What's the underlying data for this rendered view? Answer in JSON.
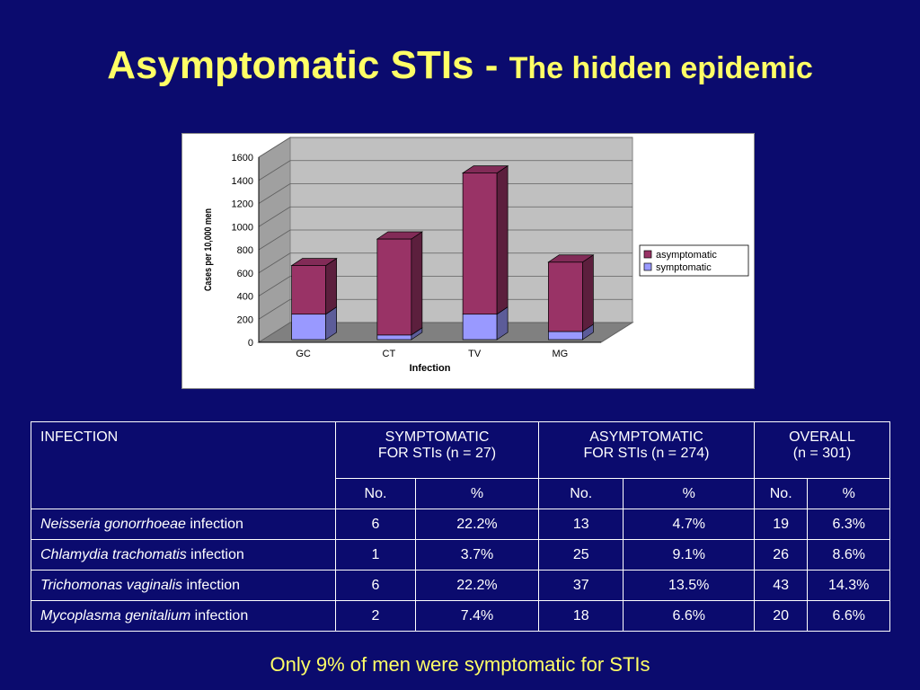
{
  "slide": {
    "title_main": "Asymptomatic STIs - ",
    "title_sub": "The hidden epidemic",
    "footnote": "Only 9% of men were symptomatic for STIs",
    "background_color": "#0b0b6e",
    "title_color": "#ffff66"
  },
  "chart_data": {
    "type": "bar",
    "stacked": true,
    "three_d": true,
    "categories": [
      "GC",
      "CT",
      "TV",
      "MG"
    ],
    "series": [
      {
        "name": "symptomatic",
        "values": [
          220,
          40,
          220,
          70
        ],
        "color": "#9999ff"
      },
      {
        "name": "asymptomatic",
        "values": [
          420,
          830,
          1220,
          600
        ],
        "color": "#993366"
      }
    ],
    "title": "",
    "xlabel": "Infection",
    "ylabel": "Cases per 10,000 men",
    "ylim": [
      0,
      1600
    ],
    "yticks": [
      0,
      200,
      400,
      600,
      800,
      1000,
      1200,
      1400,
      1600
    ],
    "legend": [
      "asymptomatic",
      "symptomatic"
    ],
    "legend_position": "right",
    "grid": true
  },
  "table": {
    "header_infection": "INFECTION",
    "groups": [
      {
        "line1": "SYMPTOMATIC",
        "line2": "FOR STIs (n = 27)"
      },
      {
        "line1": "ASYMPTOMATIC",
        "line2": "FOR STIs (n = 274)"
      },
      {
        "line1": "OVERALL",
        "line2": "(n = 301)"
      }
    ],
    "subheaders": [
      "No.",
      "%",
      "No.",
      "%",
      "No.",
      "%"
    ],
    "rows": [
      {
        "species": "Neisseria gonorrhoeae",
        "suffix": " infection",
        "cells": [
          "6",
          "22.2%",
          "13",
          "4.7%",
          "19",
          "6.3%"
        ]
      },
      {
        "species": "Chlamydia trachomatis",
        "suffix": " infection",
        "cells": [
          "1",
          "3.7%",
          "25",
          "9.1%",
          "26",
          "8.6%"
        ]
      },
      {
        "species": "Trichomonas vaginalis",
        "suffix": " infection",
        "cells": [
          "6",
          "22.2%",
          "37",
          "13.5%",
          "43",
          "14.3%"
        ]
      },
      {
        "species": "Mycoplasma genitalium",
        "suffix": " infection",
        "cells": [
          "2",
          "7.4%",
          "18",
          "6.6%",
          "20",
          "6.6%"
        ]
      }
    ]
  }
}
